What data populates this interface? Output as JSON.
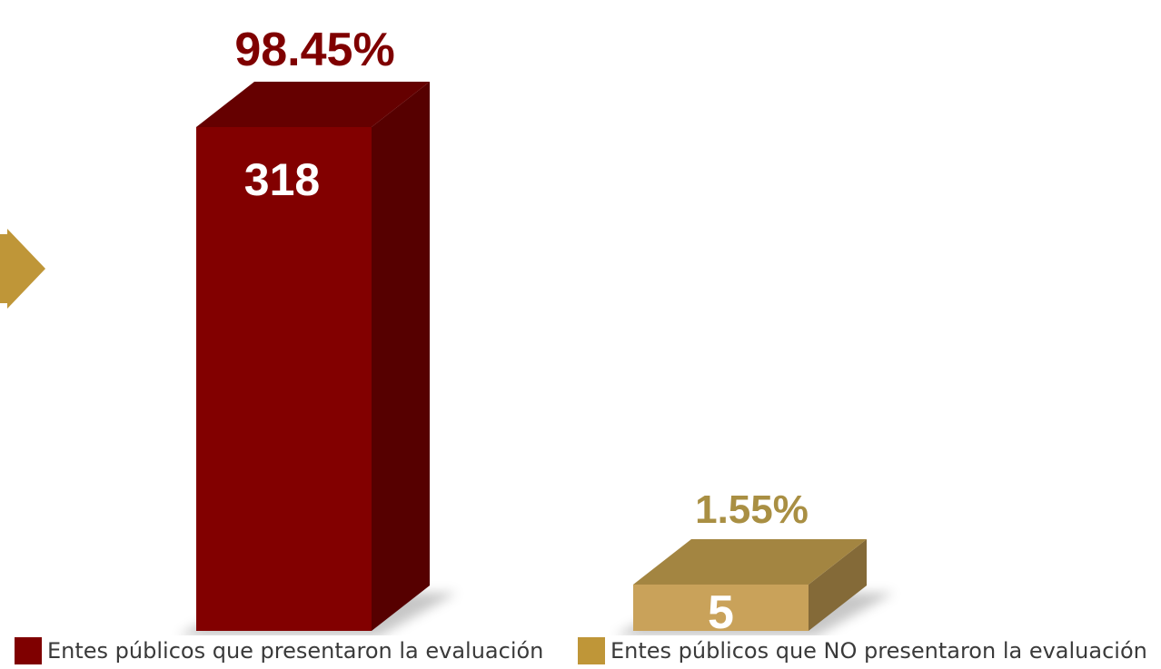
{
  "chart_data": {
    "type": "bar",
    "categories": [
      "Entes públicos que presentaron la evaluación",
      "Entes públicos que NO presentaron la evaluación"
    ],
    "values": [
      318,
      5
    ],
    "value_labels": [
      "318",
      "5"
    ],
    "percent_labels": [
      "98.45%",
      "1.55%"
    ],
    "title": "",
    "xlabel": "",
    "ylabel": "",
    "ylim": [
      0,
      318
    ],
    "grid": false,
    "legend_position": "bottom",
    "colors": {
      "front": [
        "#820000",
        "#C9A25A"
      ],
      "side": [
        "#560000",
        "#846A38"
      ],
      "top": [
        "#650000",
        "#A38541"
      ],
      "percent_text": [
        "#7F0000",
        "#A98F43"
      ]
    },
    "arrow_color": "#BF9638"
  },
  "legend": {
    "items": [
      {
        "label": "Entes públicos que presentaron la evaluación",
        "color": "#7F0000"
      },
      {
        "label": "Entes públicos que NO presentaron la evaluación",
        "color": "#BF9638"
      }
    ]
  }
}
